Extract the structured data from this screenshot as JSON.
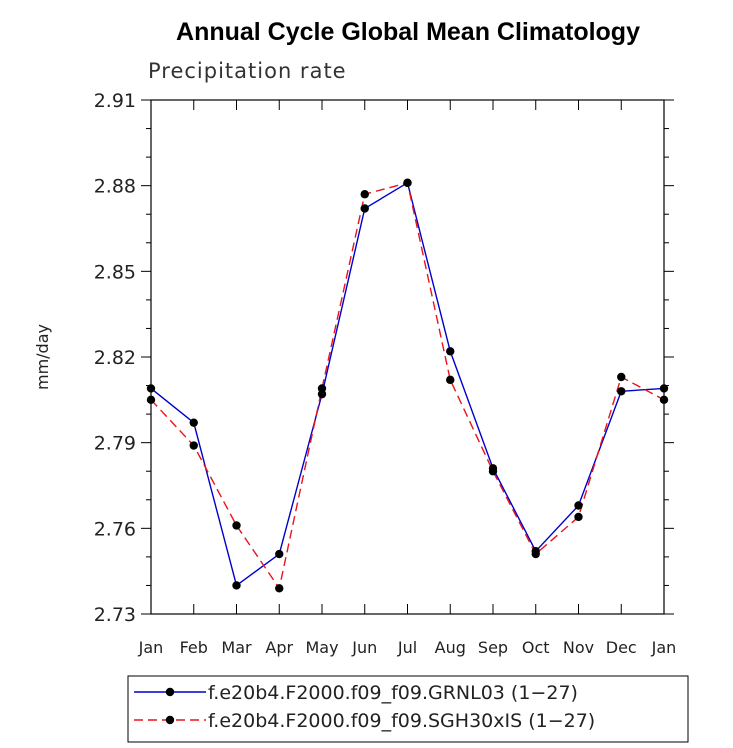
{
  "chart_data": {
    "type": "line",
    "title": "Annual Cycle Global Mean Climatology",
    "subtitle": "Precipitation rate",
    "xlabel": "",
    "ylabel": "mm/day",
    "categories": [
      "Jan",
      "Feb",
      "Mar",
      "Apr",
      "May",
      "Jun",
      "Jul",
      "Aug",
      "Sep",
      "Oct",
      "Nov",
      "Dec",
      "Jan"
    ],
    "ylim": [
      2.73,
      2.91
    ],
    "yticks": [
      "2.73",
      "2.76",
      "2.79",
      "2.82",
      "2.85",
      "2.88",
      "2.91"
    ],
    "series": [
      {
        "name": "f.e20b4.F2000.f09_f09.GRNL03 (1−27)",
        "color": "#0000cc",
        "dash": "solid",
        "values": [
          2.809,
          2.797,
          2.74,
          2.751,
          2.807,
          2.872,
          2.881,
          2.822,
          2.781,
          2.752,
          2.768,
          2.808,
          2.809
        ]
      },
      {
        "name": "f.e20b4.F2000.f09_f09.SGH30xIS (1−27)",
        "color": "#e8141e",
        "dash": "dashed",
        "values": [
          2.805,
          2.789,
          2.761,
          2.739,
          2.809,
          2.877,
          2.881,
          2.812,
          2.78,
          2.751,
          2.764,
          2.813,
          2.805
        ]
      }
    ],
    "grid": false,
    "legend": "bottom"
  }
}
